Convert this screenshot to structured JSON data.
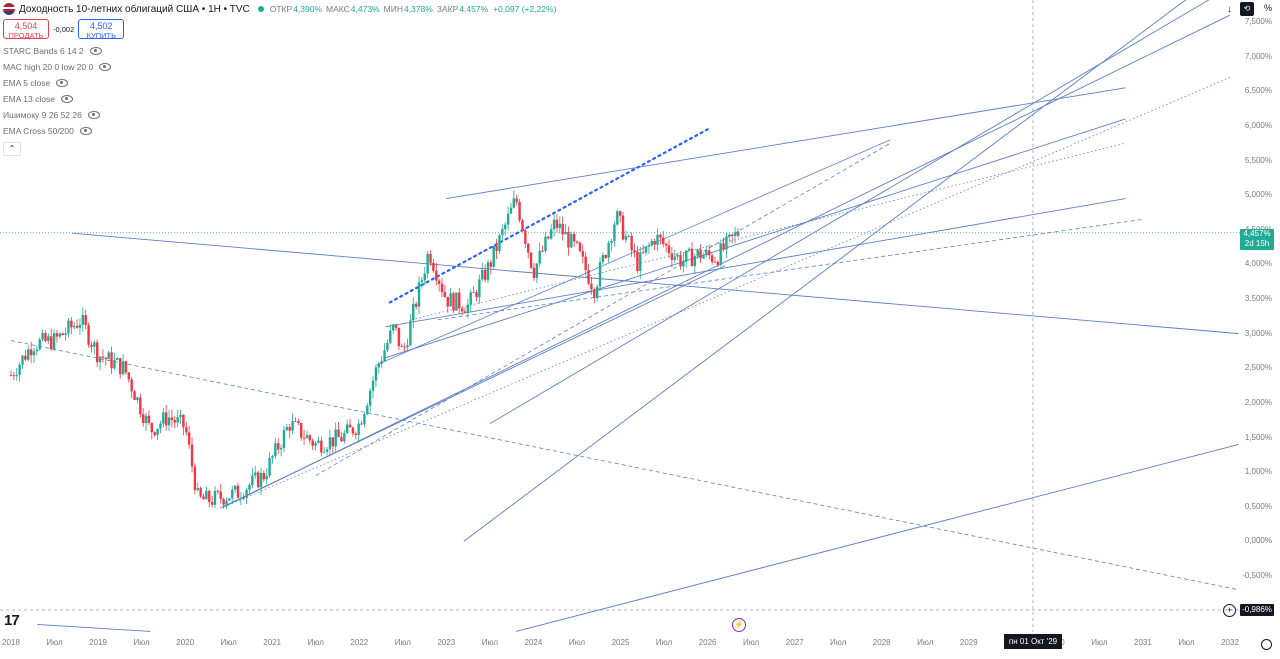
{
  "header": {
    "title": "Доходность 10-летних облигаций США • 1H • TVC",
    "ohlc": [
      {
        "label": "ОТКР",
        "value": "4,390%"
      },
      {
        "label": "МАКС",
        "value": "4,473%"
      },
      {
        "label": "МИН",
        "value": "4,378%"
      },
      {
        "label": "ЗАКР",
        "value": "4,457%"
      }
    ],
    "change": "+0,097 (+2,22%)"
  },
  "trade": {
    "sell_price": "4,504",
    "sell_label": "ПРОДАТЬ",
    "spread": "-0,002",
    "buy_price": "4,502",
    "buy_label": "КУПИТЬ"
  },
  "indicators": [
    "STARC Bands 6 14 2",
    "MAC high 20 0 low 20 0",
    "EMA 5 close",
    "EMA 13 close",
    "Ишимоку 9 26 52 26",
    "EMA Cross 50/200"
  ],
  "axis_unit": "%",
  "last_label": {
    "value": "4,457%",
    "countdown": "2d 15h"
  },
  "min_label": "-0,986%",
  "crosshair_date": "пн 01 Окт '29",
  "colors": {
    "up": "#22ab94",
    "down": "#f23645",
    "trendline": "#5b7fc7",
    "accent": "#2962ff"
  },
  "chart_data": {
    "type": "candlestick",
    "y_ticks": [
      "7,500%",
      "7,000%",
      "6,500%",
      "6,000%",
      "5,500%",
      "5,000%",
      "4,500%",
      "4,000%",
      "3,500%",
      "3,000%",
      "2,500%",
      "2,000%",
      "1,500%",
      "1,000%",
      "0,500%",
      "0,000%",
      "-0,500%"
    ],
    "x_ticks": [
      "2018",
      "Июл",
      "2019",
      "Июл",
      "2020",
      "Июл",
      "2021",
      "Июл",
      "2022",
      "Июл",
      "2023",
      "Июл",
      "2024",
      "Июл",
      "2025",
      "Июл",
      "2026",
      "Июл",
      "2027",
      "Июл",
      "2028",
      "Июл",
      "2029",
      "Июл",
      "2030",
      "Июл",
      "2031",
      "Июл",
      "2032"
    ],
    "ylim": [
      -1.2,
      7.8
    ],
    "xlim": [
      2018.0,
      2032.1
    ],
    "path": [
      [
        2018.0,
        2.4
      ],
      [
        2018.25,
        2.85
      ],
      [
        2018.5,
        2.9
      ],
      [
        2018.8,
        3.2
      ],
      [
        2019.0,
        2.7
      ],
      [
        2019.3,
        2.5
      ],
      [
        2019.6,
        1.6
      ],
      [
        2019.8,
        1.8
      ],
      [
        2020.0,
        1.65
      ],
      [
        2020.15,
        0.6
      ],
      [
        2020.3,
        0.6
      ],
      [
        2020.6,
        0.7
      ],
      [
        2020.9,
        0.95
      ],
      [
        2021.2,
        1.7
      ],
      [
        2021.5,
        1.4
      ],
      [
        2021.8,
        1.5
      ],
      [
        2022.0,
        1.7
      ],
      [
        2022.2,
        2.5
      ],
      [
        2022.4,
        3.1
      ],
      [
        2022.5,
        2.7
      ],
      [
        2022.8,
        4.2
      ],
      [
        2023.0,
        3.5
      ],
      [
        2023.25,
        3.4
      ],
      [
        2023.5,
        4.0
      ],
      [
        2023.8,
        4.95
      ],
      [
        2024.0,
        3.9
      ],
      [
        2024.25,
        4.6
      ],
      [
        2024.5,
        4.2
      ],
      [
        2024.7,
        3.65
      ],
      [
        2024.95,
        4.7
      ],
      [
        2025.2,
        4.0
      ],
      [
        2025.4,
        4.4
      ],
      [
        2025.7,
        4.05
      ],
      [
        2025.9,
        4.15
      ],
      [
        2026.1,
        4.1
      ],
      [
        2026.35,
        4.457
      ]
    ],
    "last": 4.457
  }
}
